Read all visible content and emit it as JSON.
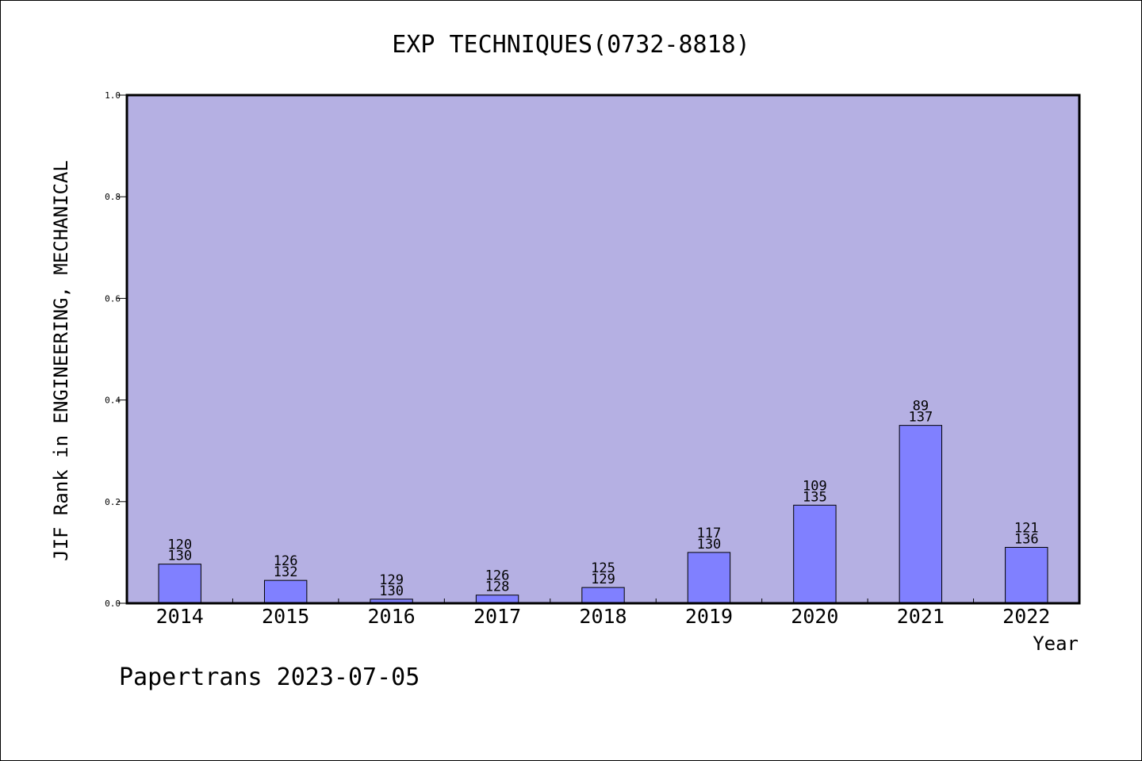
{
  "colors": {
    "plot_background": "#b5b0e3",
    "bar_fill": "#8080ff",
    "bar_stroke": "#000000",
    "axis": "#000000",
    "page_background": "#ffffff"
  },
  "footer": "Papertrans 2023-07-05",
  "chart_data": {
    "type": "bar",
    "title": "EXP TECHNIQUES(0732-8818)",
    "xlabel": "Year",
    "ylabel": "JIF Rank in ENGINEERING, MECHANICAL",
    "ylim": [
      0,
      1.0
    ],
    "yticks": [
      "0.0",
      "0.2",
      "0.4",
      "0.6",
      "0.8",
      "1.0"
    ],
    "grid": false,
    "categories": [
      "2014",
      "2015",
      "2016",
      "2017",
      "2018",
      "2019",
      "2020",
      "2021",
      "2022"
    ],
    "values": [
      0.077,
      0.045,
      0.008,
      0.016,
      0.031,
      0.1,
      0.193,
      0.35,
      0.11
    ],
    "rank": [
      120,
      126,
      129,
      126,
      125,
      117,
      109,
      89,
      121
    ],
    "total": [
      130,
      132,
      130,
      128,
      129,
      130,
      135,
      137,
      136
    ]
  }
}
